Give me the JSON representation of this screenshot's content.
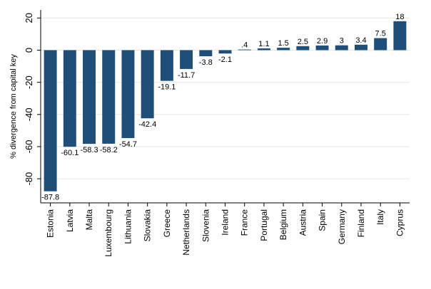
{
  "chart_data": {
    "type": "bar",
    "title": "",
    "xlabel": "",
    "ylabel": "% divergence from capital key",
    "ylim": [
      -95,
      25
    ],
    "yticks": [
      20,
      0,
      -20,
      -40,
      -60,
      -80
    ],
    "ytick_labels": [
      "20",
      "0",
      "-20",
      "-40",
      "-60",
      "-80"
    ],
    "grid": true,
    "bar_color": "#1f4e79",
    "grid_color": "#e6e6e6",
    "categories": [
      "Estonia",
      "Latvia",
      "Malta",
      "Luxembourg",
      "Lithuania",
      "Slovakia",
      "Greece",
      "Netherlands",
      "Slovenia",
      "Ireland",
      "France",
      "Portugal",
      "Belgium",
      "Austria",
      "Spain",
      "Germany",
      "Finland",
      "Italy",
      "Cyprus"
    ],
    "values": [
      -87.8,
      -60.1,
      -58.3,
      -58.2,
      -54.7,
      -42.4,
      -19.1,
      -11.7,
      -3.8,
      -2.1,
      0.4,
      1.1,
      1.5,
      2.5,
      2.9,
      3,
      3.4,
      7.5,
      18
    ],
    "value_labels": [
      "-87.8",
      "-60.1",
      "-58.3",
      "-58.2",
      "-54.7",
      "-42.4",
      "-19.1",
      "-11.7",
      "-3.8",
      "-2.1",
      ".4",
      "1.1",
      "1.5",
      "2.5",
      "2.9",
      "3",
      "3.4",
      "7.5",
      "18"
    ]
  }
}
